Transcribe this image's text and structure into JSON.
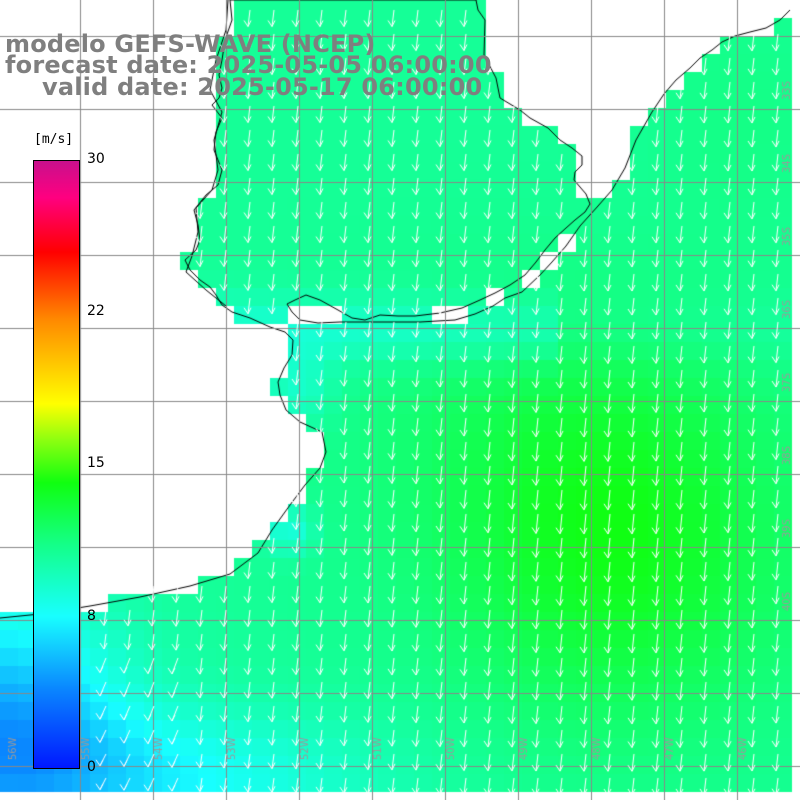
{
  "title": {
    "model": "modelo GEFS-WAVE (NCEP)",
    "forecast": "forecast date: 2025-05-05 06:00:00",
    "valid": "valid date: 2025-05-17 06:00:00"
  },
  "colorbar": {
    "unit": "[m/s]",
    "min": 0,
    "max": 30,
    "ticks": [
      "30",
      "22",
      "15",
      "8",
      "0"
    ]
  },
  "lon_labels": [
    "56W",
    "55W",
    "54W",
    "53W",
    "52W",
    "51W",
    "50W",
    "49W",
    "48W",
    "47W",
    "46W"
  ],
  "lat_labels": [
    "33S",
    "34S",
    "35S",
    "36S",
    "37S",
    "38S",
    "39S",
    "40S"
  ],
  "colors": {
    "ocean_low": "#0018ff",
    "ocean_mid": "#18ffff",
    "ocean_high": "#8cff10",
    "land": "#ffffff",
    "grid": "#888888",
    "title": "#7f7f7f"
  },
  "icons": {
    "wind_vector": "arrow-down-icon"
  }
}
